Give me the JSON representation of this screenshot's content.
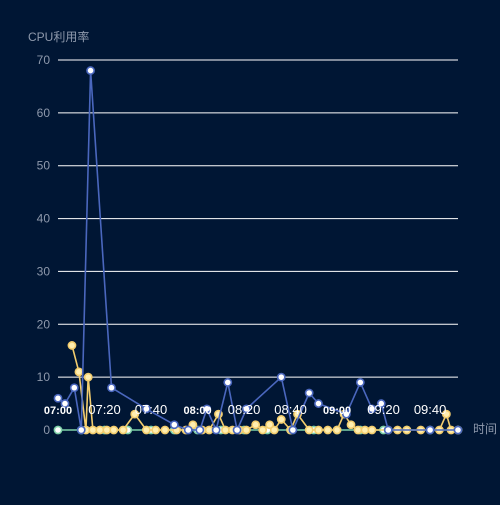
{
  "chart_data": {
    "type": "line",
    "ylabel": "CPU利用率",
    "xlabel": "时间",
    "ylim": [
      0,
      70
    ],
    "yticks": [
      0,
      10,
      20,
      30,
      40,
      50,
      60,
      70
    ],
    "grid": true,
    "xrange": [
      "07:00",
      "09:52"
    ],
    "xticks": [
      {
        "label": "07:00",
        "t": "07:00",
        "bold": true
      },
      {
        "label": "07:20",
        "t": "07:20",
        "bold": false
      },
      {
        "label": "07:40",
        "t": "07:40",
        "bold": false
      },
      {
        "label": "08:00",
        "t": "08:00",
        "bold": true
      },
      {
        "label": "08:20",
        "t": "08:20",
        "bold": false
      },
      {
        "label": "08:40",
        "t": "08:40",
        "bold": false
      },
      {
        "label": "09:00",
        "t": "09:00",
        "bold": true
      },
      {
        "label": "09:20",
        "t": "09:20",
        "bold": false
      },
      {
        "label": "09:40",
        "t": "09:40",
        "bold": false
      }
    ],
    "colors": {
      "background": "#001634",
      "grid": "#ffffff",
      "axis_text": "#8e99ac",
      "tick_text": "#ffffff",
      "marker_fill": "#ffffff"
    },
    "series": [
      {
        "color": "#4a67be",
        "marker_fill": "#ffffff",
        "points": [
          [
            "07:00",
            6
          ],
          [
            "07:03",
            5
          ],
          [
            "07:07",
            8
          ],
          [
            "07:10",
            0
          ],
          [
            "07:14",
            68
          ],
          [
            "07:23",
            8
          ],
          [
            "07:38",
            4
          ],
          [
            "07:50",
            1
          ],
          [
            "07:56",
            0
          ],
          [
            "08:01",
            0
          ],
          [
            "08:04",
            4
          ],
          [
            "08:08",
            0
          ],
          [
            "08:13",
            9
          ],
          [
            "08:17",
            0
          ],
          [
            "08:21",
            4
          ],
          [
            "08:36",
            10
          ],
          [
            "08:41",
            0
          ],
          [
            "08:48",
            7
          ],
          [
            "08:52",
            5
          ],
          [
            "09:04",
            3
          ],
          [
            "09:10",
            9
          ],
          [
            "09:15",
            4
          ],
          [
            "09:19",
            5
          ],
          [
            "09:22",
            0
          ],
          [
            "09:40",
            0
          ],
          [
            "09:52",
            0
          ]
        ]
      },
      {
        "color": "#f3cd6e",
        "marker_fill": "#ffeeb0",
        "points": [
          [
            "07:06",
            16
          ],
          [
            "07:09",
            11
          ],
          [
            "07:12",
            0
          ],
          [
            "07:13",
            10
          ],
          [
            "07:15",
            0
          ],
          [
            "07:18",
            0
          ],
          [
            "07:21",
            0
          ],
          [
            "07:24",
            0
          ],
          [
            "07:28",
            0
          ],
          [
            "07:33",
            3
          ],
          [
            "07:38",
            0
          ],
          [
            "07:42",
            0
          ],
          [
            "07:46",
            0
          ],
          [
            "07:51",
            0
          ],
          [
            "07:55",
            0
          ],
          [
            "07:58",
            1
          ],
          [
            "08:02",
            0
          ],
          [
            "08:05",
            0
          ],
          [
            "08:09",
            3
          ],
          [
            "08:12",
            0
          ],
          [
            "08:15",
            0
          ],
          [
            "08:18",
            0
          ],
          [
            "08:21",
            0
          ],
          [
            "08:25",
            1
          ],
          [
            "08:28",
            0
          ],
          [
            "08:31",
            1
          ],
          [
            "08:33",
            0
          ],
          [
            "08:36",
            2
          ],
          [
            "08:40",
            0
          ],
          [
            "08:43",
            3
          ],
          [
            "08:48",
            0
          ],
          [
            "08:52",
            0
          ],
          [
            "08:56",
            0
          ],
          [
            "09:00",
            0
          ],
          [
            "09:03",
            3
          ],
          [
            "09:06",
            1
          ],
          [
            "09:09",
            0
          ],
          [
            "09:12",
            0
          ],
          [
            "09:15",
            0
          ],
          [
            "09:22",
            0
          ],
          [
            "09:26",
            0
          ],
          [
            "09:30",
            0
          ],
          [
            "09:36",
            0
          ],
          [
            "09:44",
            0
          ],
          [
            "09:47",
            3
          ],
          [
            "09:49",
            0
          ],
          [
            "09:52",
            0
          ]
        ]
      },
      {
        "color": "#7ed0a8",
        "marker_fill": "#ffffff",
        "points": [
          [
            "07:00",
            0
          ],
          [
            "07:10",
            0
          ],
          [
            "07:20",
            0
          ],
          [
            "07:30",
            0
          ],
          [
            "07:40",
            0
          ],
          [
            "07:50",
            0
          ],
          [
            "08:00",
            0
          ],
          [
            "08:10",
            0
          ],
          [
            "08:20",
            0
          ],
          [
            "08:30",
            0
          ],
          [
            "08:40",
            0
          ],
          [
            "08:50",
            0
          ],
          [
            "09:00",
            0
          ],
          [
            "09:10",
            0
          ],
          [
            "09:20",
            0
          ],
          [
            "09:30",
            0
          ],
          [
            "09:40",
            0
          ],
          [
            "09:52",
            0
          ]
        ]
      }
    ]
  }
}
